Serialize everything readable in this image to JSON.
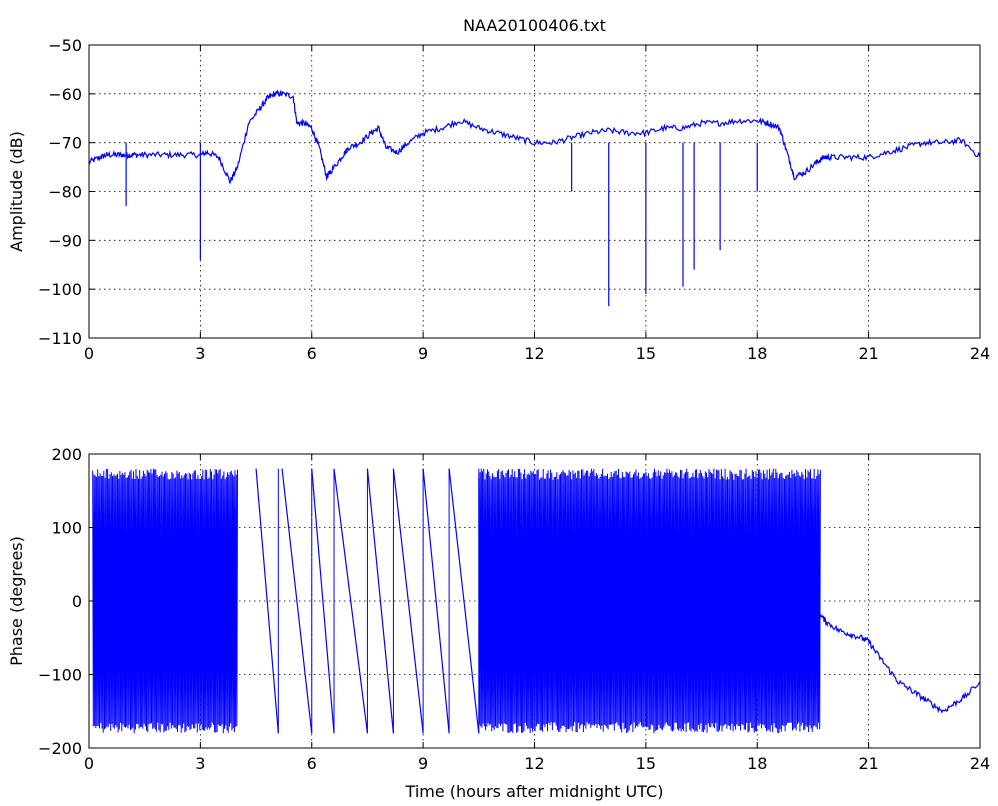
{
  "chart_data": [
    {
      "type": "line",
      "title": "NAA20100406.txt",
      "xlabel": "",
      "ylabel": "Amplitude (dB)",
      "xlim": [
        0,
        24
      ],
      "ylim": [
        -110,
        -50
      ],
      "xticks": [
        0,
        3,
        6,
        9,
        12,
        15,
        18,
        21,
        24
      ],
      "yticks": [
        -110,
        -100,
        -90,
        -80,
        -70,
        -60,
        -50
      ],
      "grid": true,
      "series_color": "#0000ff",
      "series": [
        {
          "x": [
            0,
            0.3,
            0.5,
            0.8,
            1.0,
            1.2,
            1.5,
            2.0,
            2.5,
            3.0,
            3.2,
            3.5,
            3.8,
            4.0,
            4.3,
            4.6,
            4.8,
            5.0,
            5.2,
            5.5,
            5.6,
            5.8,
            6.0,
            6.2,
            6.4,
            6.5,
            6.8,
            7.0,
            7.3,
            7.6,
            7.8,
            8.0,
            8.3,
            8.6,
            9.0,
            9.5,
            10.0,
            10.5,
            11.0,
            11.5,
            12.0,
            12.5,
            13.0,
            13.5,
            14.0,
            14.5,
            15.0,
            15.5,
            16.0,
            16.5,
            17.0,
            17.5,
            18.0,
            18.3,
            18.6,
            18.8,
            19.0,
            19.3,
            19.6,
            19.8,
            20.0,
            20.5,
            21.0,
            21.5,
            22.0,
            22.5,
            23.0,
            23.5,
            24.0
          ],
          "y": [
            -74,
            -73,
            -72.5,
            -72.5,
            -72.5,
            -72.5,
            -72.5,
            -72.5,
            -72.5,
            -72.5,
            -72,
            -73,
            -78,
            -75,
            -66,
            -63,
            -61,
            -60,
            -60,
            -60.5,
            -66,
            -66,
            -67,
            -71,
            -77,
            -76,
            -73,
            -71,
            -70,
            -68,
            -67,
            -71,
            -72,
            -70,
            -68,
            -67,
            -65.5,
            -67,
            -68,
            -69,
            -70,
            -70,
            -69,
            -68,
            -67.5,
            -68,
            -68,
            -67,
            -67,
            -66,
            -66,
            -65.5,
            -65.5,
            -66,
            -67,
            -72,
            -77,
            -76,
            -74,
            -73,
            -73,
            -73,
            -73,
            -72,
            -71,
            -70,
            -70,
            -69.5,
            -73
          ]
        }
      ],
      "spikes": {
        "x": [
          1.0,
          3.0,
          13.0,
          14.0,
          15.0,
          16.0,
          16.3,
          17.0,
          18.0
        ],
        "y_min": [
          -83,
          -94,
          -80,
          -103.5,
          -101,
          -99.5,
          -96,
          -92,
          -80
        ]
      }
    },
    {
      "type": "line",
      "title": "",
      "xlabel": "Time (hours after midnight UTC)",
      "ylabel": "Phase (degrees)",
      "xlim": [
        0,
        24
      ],
      "ylim": [
        -200,
        200
      ],
      "xticks": [
        0,
        3,
        6,
        9,
        12,
        15,
        18,
        21,
        24
      ],
      "yticks": [
        -200,
        -100,
        0,
        100,
        200
      ],
      "grid": true,
      "series_color": "#0000ff",
      "wrap_limits": [
        -180,
        180
      ],
      "dense_regions": [
        [
          0.1,
          4.0
        ],
        [
          10.5,
          19.7
        ]
      ],
      "ramps": [
        {
          "x0": 4.5,
          "x1": 5.1
        },
        {
          "x0": 5.2,
          "x1": 6.0
        },
        {
          "x0": 6.0,
          "x1": 6.6
        },
        {
          "x0": 6.6,
          "x1": 7.5
        },
        {
          "x0": 7.5,
          "x1": 8.2
        },
        {
          "x0": 8.2,
          "x1": 9.0
        },
        {
          "x0": 9.0,
          "x1": 9.7
        },
        {
          "x0": 9.7,
          "x1": 10.5
        }
      ],
      "series": [
        {
          "x": [
            19.7,
            19.9,
            20.2,
            20.5,
            20.8,
            21.0,
            21.2,
            21.5,
            21.8,
            22.1,
            22.4,
            22.7,
            23.0,
            23.3,
            23.6,
            24.0
          ],
          "y": [
            -20,
            -30,
            -40,
            -45,
            -50,
            -55,
            -70,
            -90,
            -110,
            -120,
            -130,
            -140,
            -150,
            -140,
            -130,
            -110
          ]
        }
      ]
    }
  ]
}
